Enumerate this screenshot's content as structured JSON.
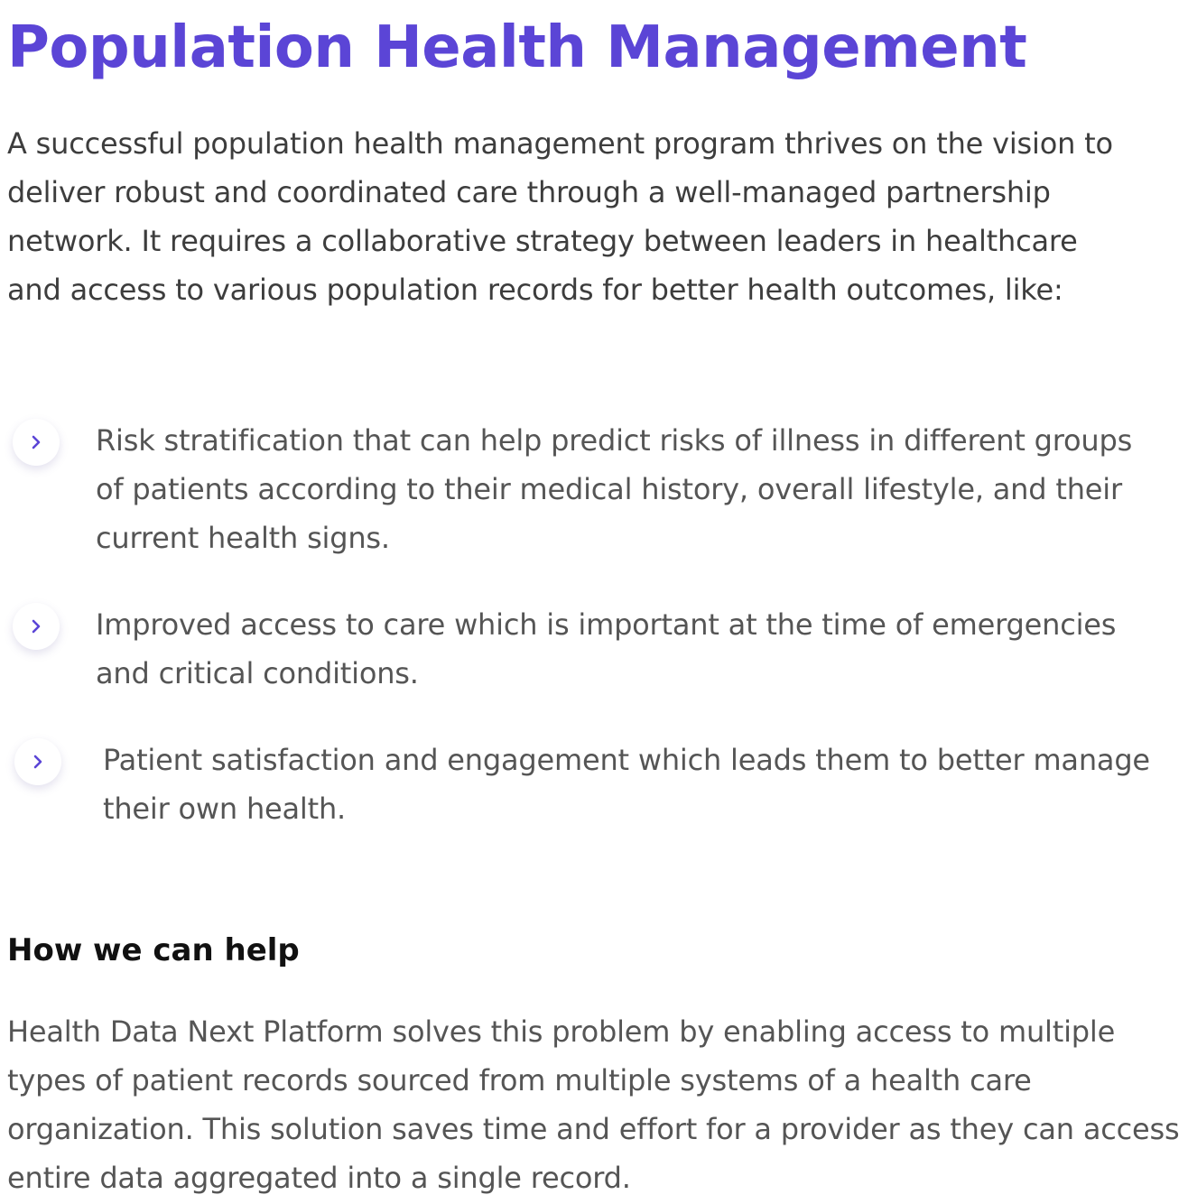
{
  "article": {
    "title": "Population Health Management",
    "intro": "A successful population health management program thrives on the vision to deliver robust and coordinated care through a well-managed partnership network. It requires a collaborative strategy between leaders in healthcare and access to various population records for better health outcomes, like:",
    "benefits": [
      {
        "icon": "chevron-right-icon",
        "text": "Risk stratification that can help predict risks of illness in different groups of patients according to their medical history, overall lifestyle, and their current health signs."
      },
      {
        "icon": "chevron-right-icon",
        "text": "Improved access to care which is important at the time of emergencies and critical conditions."
      },
      {
        "icon": "chevron-right-icon",
        "text": "Patient satisfaction and engagement which leads them to better manage their own health."
      }
    ],
    "help_heading": "How we can help",
    "help_body": "Health Data Next Platform solves this problem by enabling access to multiple types of patient records sourced from multiple systems of a health care organization. This solution saves time and effort for a provider as they can access entire data aggregated into a single record."
  },
  "colors": {
    "accent": "#5b45d6",
    "body_text": "#555555",
    "intro_text": "#3d3d3d",
    "heading_text": "#111111"
  }
}
